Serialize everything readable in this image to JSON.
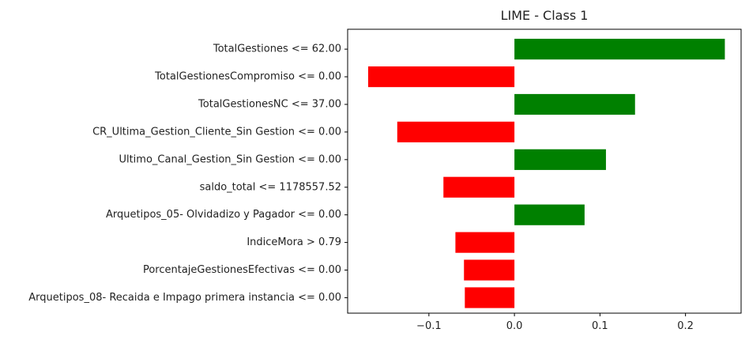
{
  "chart_data": {
    "type": "bar",
    "orientation": "horizontal",
    "title": "LIME - Class 1",
    "xlabel": "",
    "ylabel": "",
    "categories": [
      "TotalGestiones <= 62.00",
      "TotalGestionesCompromiso <= 0.00",
      "TotalGestionesNC <= 37.00",
      "CR_Ultima_Gestion_Cliente_Sin Gestion <= 0.00",
      "Ultimo_Canal_Gestion_Sin Gestion <= 0.00",
      "saldo_total <= 1178557.52",
      "Arquetipos_05- Olvidadizo y Pagador <= 0.00",
      "IndiceMora > 0.79",
      "PorcentajeGestionesEfectivas <= 0.00",
      "Arquetipos_08- Recaida e Impago primera instancia <= 0.00"
    ],
    "values": [
      0.246,
      -0.171,
      0.141,
      -0.137,
      0.107,
      -0.083,
      0.082,
      -0.069,
      -0.059,
      -0.058
    ],
    "xlim": [
      -0.195,
      0.265
    ],
    "xticks": [
      -0.1,
      0.0,
      0.1,
      0.2
    ],
    "xtick_labels": [
      "−0.1",
      "0.0",
      "0.1",
      "0.2"
    ],
    "grid": false,
    "colors": {
      "positive": "#008000",
      "negative": "#ff0000",
      "axis": "#000000"
    }
  }
}
